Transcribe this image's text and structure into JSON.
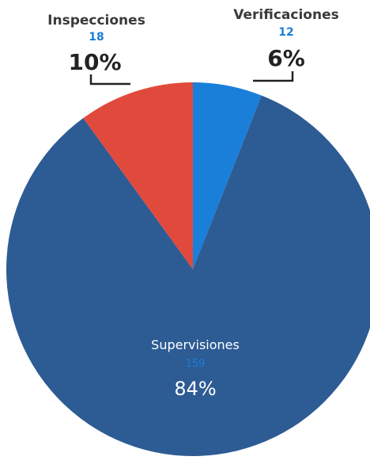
{
  "chart_data": {
    "type": "pie",
    "slices": [
      {
        "label": "Verificaciones",
        "count": "12",
        "percent": "6%",
        "value": 6,
        "color": "#1a7fd9"
      },
      {
        "label": "Supervisiones",
        "count": "159",
        "percent": "84%",
        "value": 84,
        "color": "#2d5b94"
      },
      {
        "label": "Inspecciones",
        "count": "18",
        "percent": "10%",
        "value": 10,
        "color": "#e04a3c"
      }
    ],
    "count_color": "#1a7fd9",
    "inner_count_color": "#1a7fd9"
  }
}
